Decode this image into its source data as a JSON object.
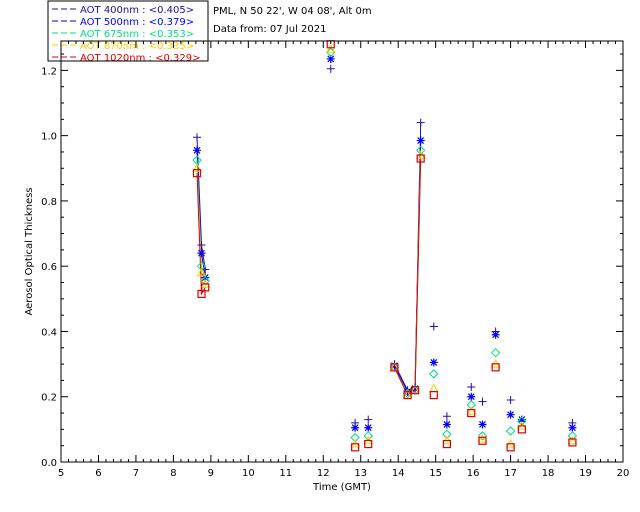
{
  "header": {
    "site": "PML, N 50 22', W 04 08', Alt 0m",
    "date": "Data from: 07 Jul 2021"
  },
  "legend": [
    {
      "label": "AOT  400nm : <0.405>",
      "color": "#2a0aa8"
    },
    {
      "label": "AOT  500nm : <0.379>",
      "color": "#0000ff"
    },
    {
      "label": "AOT  675nm : <0.353>",
      "color": "#00dd88"
    },
    {
      "label": "AOT  870nm : <0.335>",
      "color": "#ffcc00"
    },
    {
      "label": "AOT 1020nm : <0.329>",
      "color": "#e00000"
    }
  ],
  "chart_data": {
    "type": "scatter",
    "xlabel": "Time (GMT)",
    "ylabel": "Aerosol Optical Thickness",
    "xlim": [
      5,
      20
    ],
    "ylim": [
      0.0,
      1.29
    ],
    "xticks": [
      5,
      6,
      7,
      8,
      9,
      10,
      11,
      12,
      13,
      14,
      15,
      16,
      17,
      18,
      19,
      20
    ],
    "yticks": [
      0.0,
      0.2,
      0.4,
      0.6,
      0.8,
      1.0,
      1.2
    ],
    "ytick_labels": [
      "0.0",
      "0.2",
      "0.4",
      "0.6",
      "0.8",
      "1.0",
      "1.2"
    ],
    "series": [
      {
        "legend_index": 0,
        "color": "#2a0aa8",
        "marker": "plus",
        "x": [
          8.63,
          8.75,
          8.85,
          12.2,
          12.85,
          13.2,
          13.9,
          14.25,
          14.45,
          14.6,
          14.95,
          15.3,
          15.95,
          16.25,
          16.6,
          17.0,
          17.3,
          18.65
        ],
        "y": [
          0.995,
          0.665,
          0.59,
          1.205,
          0.12,
          0.13,
          0.3,
          0.22,
          0.23,
          1.04,
          0.415,
          0.14,
          0.23,
          0.185,
          0.4,
          0.19,
          0.125,
          0.12
        ]
      },
      {
        "legend_index": 1,
        "color": "#0000ff",
        "marker": "asterisk",
        "x": [
          8.63,
          8.75,
          8.85,
          12.2,
          12.85,
          13.2,
          13.9,
          14.25,
          14.45,
          14.6,
          14.95,
          15.3,
          15.95,
          16.25,
          16.6,
          17.0,
          17.3,
          18.65
        ],
        "y": [
          0.955,
          0.64,
          0.565,
          1.235,
          0.105,
          0.105,
          0.295,
          0.215,
          0.225,
          0.985,
          0.305,
          0.115,
          0.2,
          0.115,
          0.39,
          0.145,
          0.13,
          0.105
        ]
      },
      {
        "legend_index": 2,
        "color": "#00dd88",
        "marker": "diamond",
        "x": [
          8.63,
          8.75,
          8.85,
          12.2,
          12.85,
          13.2,
          13.9,
          14.25,
          14.45,
          14.6,
          14.95,
          15.3,
          15.95,
          16.25,
          16.6,
          17.0,
          17.3,
          18.65
        ],
        "y": [
          0.925,
          0.6,
          0.555,
          1.255,
          0.075,
          0.08,
          0.29,
          0.21,
          0.22,
          0.955,
          0.27,
          0.085,
          0.175,
          0.08,
          0.335,
          0.095,
          0.125,
          0.08
        ]
      },
      {
        "legend_index": 3,
        "color": "#ffcc00",
        "marker": "triangle",
        "x": [
          8.63,
          8.75,
          8.85,
          12.2,
          12.85,
          13.2,
          13.9,
          14.25,
          14.45,
          14.6,
          14.95,
          15.3,
          15.95,
          16.25,
          16.6,
          17.0,
          17.3,
          18.65
        ],
        "y": [
          0.9,
          0.58,
          0.545,
          1.265,
          0.055,
          0.065,
          0.29,
          0.205,
          0.22,
          0.94,
          0.225,
          0.065,
          0.155,
          0.07,
          0.3,
          0.055,
          0.11,
          0.065
        ]
      },
      {
        "legend_index": 4,
        "color": "#e00000",
        "marker": "square",
        "x": [
          8.63,
          8.75,
          8.85,
          12.2,
          12.85,
          13.2,
          13.9,
          14.25,
          14.45,
          14.6,
          14.95,
          15.3,
          15.95,
          16.25,
          16.6,
          17.0,
          17.3,
          18.65
        ],
        "y": [
          0.885,
          0.515,
          0.535,
          1.28,
          0.045,
          0.055,
          0.29,
          0.205,
          0.22,
          0.93,
          0.205,
          0.055,
          0.15,
          0.065,
          0.29,
          0.045,
          0.1,
          0.06
        ]
      }
    ]
  }
}
